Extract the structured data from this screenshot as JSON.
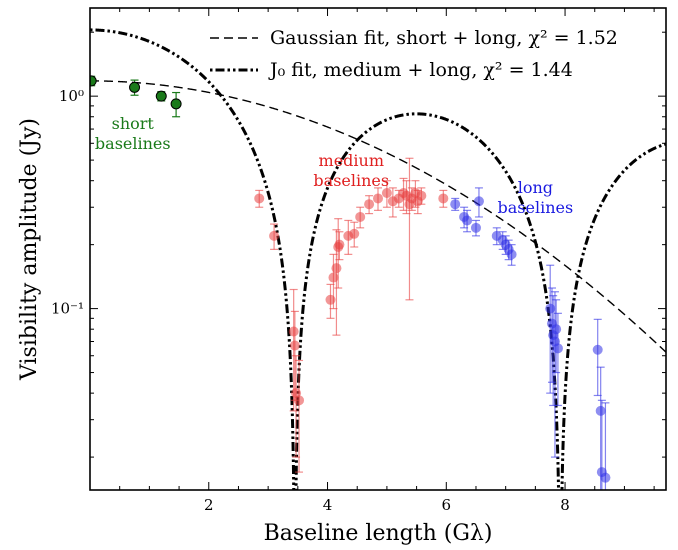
{
  "chart_data": {
    "type": "scatter",
    "xlabel": "Baseline length (Gλ)",
    "ylabel": "Visibility amplitude (Jy)",
    "xscale": "linear",
    "yscale": "log",
    "xlim": [
      0,
      9.7
    ],
    "ylim": [
      0.014,
      2.6
    ],
    "xticks": [
      {
        "value": 2,
        "label": "2"
      },
      {
        "value": 4,
        "label": "4"
      },
      {
        "value": 6,
        "label": "6"
      },
      {
        "value": 8,
        "label": "8"
      }
    ],
    "yticks": [
      {
        "value": 1.0,
        "label": "10⁰"
      },
      {
        "value": 0.1,
        "label": "10⁻¹"
      }
    ],
    "legend": {
      "placement": "top-right",
      "entries": [
        {
          "label": "Gaussian fit, short + long, χ² = 1.52",
          "style": "dashed"
        },
        {
          "label": "J₀ fit, medium + long, χ² = 1.44",
          "style": "dash-dot"
        }
      ]
    },
    "annotations": [
      {
        "lines": [
          "short",
          "baselines"
        ],
        "color": "#1a7a1a",
        "x": 0.72,
        "y": 0.7
      },
      {
        "lines": [
          "medium",
          "baselines"
        ],
        "color": "#e02020",
        "x": 4.4,
        "y": 0.47
      },
      {
        "lines": [
          "long",
          "baselines"
        ],
        "color": "#1a1ae0",
        "x": 7.5,
        "y": 0.35
      }
    ],
    "models": [
      {
        "kind": "gaussian",
        "a": 1.18,
        "sigma": 4.0,
        "style": "dashed",
        "color": "#000000"
      },
      {
        "kind": "bessel_j0",
        "a": 2.05,
        "first_zero": 3.45,
        "style": "dash-dot",
        "color": "#000000"
      }
    ],
    "series": [
      {
        "name": "short baselines",
        "color": "#1a7a1a",
        "points": [
          {
            "x": 0.02,
            "y": 1.18,
            "err": 0.06
          },
          {
            "x": 0.75,
            "y": 1.1,
            "err": 0.09
          },
          {
            "x": 1.2,
            "y": 1.0,
            "err": 0.05
          },
          {
            "x": 1.45,
            "y": 0.92,
            "err": 0.12
          }
        ]
      },
      {
        "name": "medium baselines",
        "color": "#e84040",
        "points": [
          {
            "x": 2.85,
            "y": 0.33,
            "err": 0.03
          },
          {
            "x": 3.1,
            "y": 0.22,
            "err": 0.03
          },
          {
            "x": 3.43,
            "y": 0.078,
            "err": 0.045
          },
          {
            "x": 3.45,
            "y": 0.067,
            "err": 0.03
          },
          {
            "x": 3.47,
            "y": 0.04,
            "err": 0.02
          },
          {
            "x": 3.52,
            "y": 0.037,
            "err": 0.02
          },
          {
            "x": 4.05,
            "y": 0.11,
            "err": 0.02
          },
          {
            "x": 4.1,
            "y": 0.14,
            "err": 0.04
          },
          {
            "x": 4.15,
            "y": 0.155,
            "err": 0.08
          },
          {
            "x": 4.18,
            "y": 0.195,
            "err": 0.07
          },
          {
            "x": 4.2,
            "y": 0.2,
            "err": 0.03
          },
          {
            "x": 4.35,
            "y": 0.22,
            "err": 0.04
          },
          {
            "x": 4.45,
            "y": 0.225,
            "err": 0.03
          },
          {
            "x": 4.55,
            "y": 0.27,
            "err": 0.03
          },
          {
            "x": 4.7,
            "y": 0.31,
            "err": 0.03
          },
          {
            "x": 4.85,
            "y": 0.33,
            "err": 0.04
          },
          {
            "x": 5.0,
            "y": 0.35,
            "err": 0.05
          },
          {
            "x": 5.1,
            "y": 0.32,
            "err": 0.05
          },
          {
            "x": 5.2,
            "y": 0.33,
            "err": 0.03
          },
          {
            "x": 5.28,
            "y": 0.35,
            "err": 0.06
          },
          {
            "x": 5.33,
            "y": 0.34,
            "err": 0.06
          },
          {
            "x": 5.38,
            "y": 0.31,
            "err": 0.2
          },
          {
            "x": 5.42,
            "y": 0.33,
            "err": 0.04
          },
          {
            "x": 5.48,
            "y": 0.35,
            "err": 0.05
          },
          {
            "x": 5.52,
            "y": 0.32,
            "err": 0.04
          },
          {
            "x": 5.58,
            "y": 0.34,
            "err": 0.03
          },
          {
            "x": 5.95,
            "y": 0.33,
            "err": 0.03
          }
        ]
      },
      {
        "name": "long baselines",
        "color": "#3232e6",
        "points": [
          {
            "x": 6.15,
            "y": 0.31,
            "err": 0.02
          },
          {
            "x": 6.3,
            "y": 0.27,
            "err": 0.03
          },
          {
            "x": 6.35,
            "y": 0.26,
            "err": 0.03
          },
          {
            "x": 6.5,
            "y": 0.24,
            "err": 0.02
          },
          {
            "x": 6.55,
            "y": 0.32,
            "err": 0.05
          },
          {
            "x": 6.85,
            "y": 0.22,
            "err": 0.02
          },
          {
            "x": 6.95,
            "y": 0.21,
            "err": 0.02
          },
          {
            "x": 7.0,
            "y": 0.2,
            "err": 0.02
          },
          {
            "x": 7.05,
            "y": 0.19,
            "err": 0.02
          },
          {
            "x": 7.1,
            "y": 0.18,
            "err": 0.02
          },
          {
            "x": 7.75,
            "y": 0.1,
            "err": 0.06
          },
          {
            "x": 7.78,
            "y": 0.085,
            "err": 0.04
          },
          {
            "x": 7.8,
            "y": 0.075,
            "err": 0.04
          },
          {
            "x": 7.83,
            "y": 0.07,
            "err": 0.05
          },
          {
            "x": 7.85,
            "y": 0.08,
            "err": 0.03
          },
          {
            "x": 7.88,
            "y": 0.065,
            "err": 0.03
          },
          {
            "x": 8.55,
            "y": 0.064,
            "err": 0.025
          },
          {
            "x": 8.6,
            "y": 0.033,
            "err": 0.02
          },
          {
            "x": 8.62,
            "y": 0.017,
            "err": 0.02
          },
          {
            "x": 8.68,
            "y": 0.016,
            "err": 0.02
          }
        ]
      }
    ]
  }
}
